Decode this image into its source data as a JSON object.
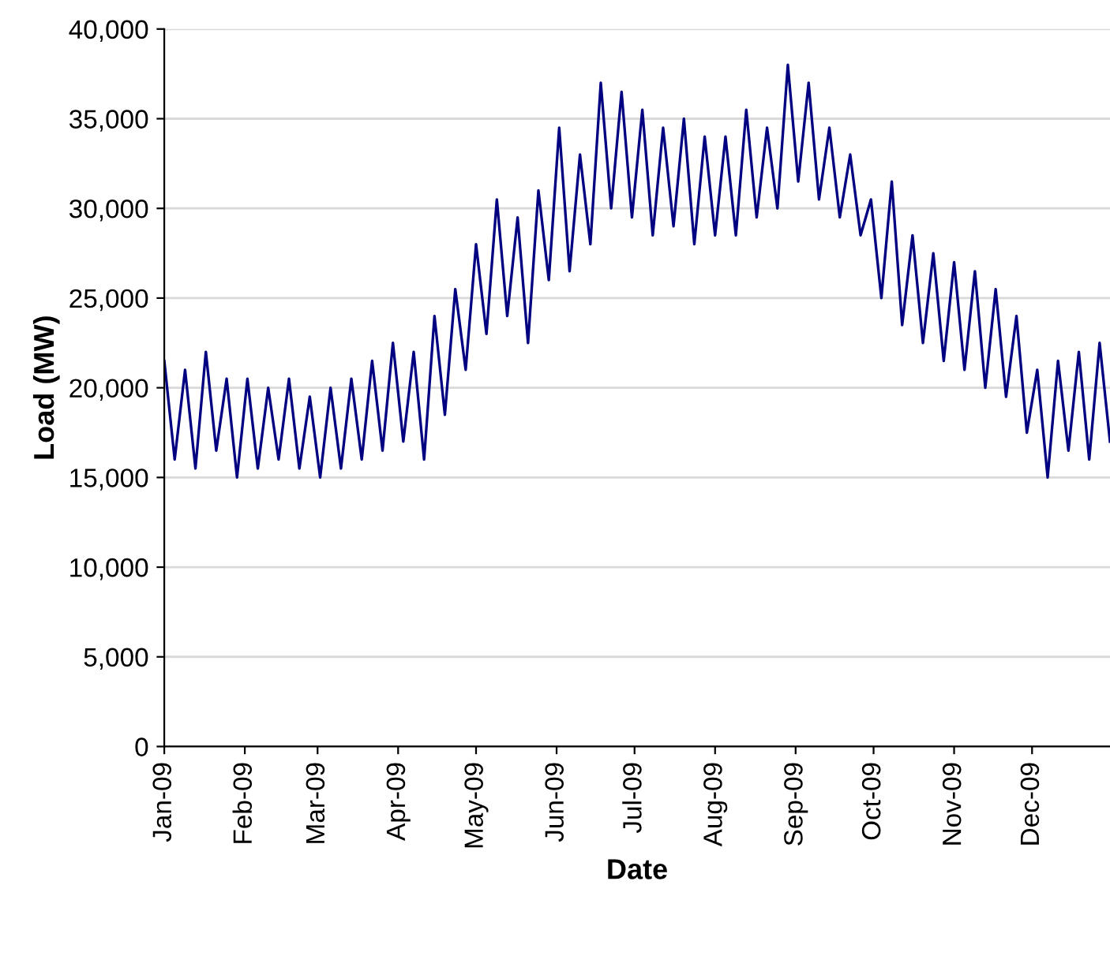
{
  "chart_data": {
    "type": "line",
    "xlabel": "Date",
    "ylabel": "Load (MW)",
    "grid": "y",
    "legend": false,
    "marker": "none",
    "line_style": "solid",
    "ylim": [
      0,
      40000
    ],
    "yticks": [
      {
        "value": 0,
        "label": "0"
      },
      {
        "value": 5000,
        "label": "5,000"
      },
      {
        "value": 10000,
        "label": "10,000"
      },
      {
        "value": 15000,
        "label": "15,000"
      },
      {
        "value": 20000,
        "label": "20,000"
      },
      {
        "value": 25000,
        "label": "25,000"
      },
      {
        "value": 30000,
        "label": "30,000"
      },
      {
        "value": 35000,
        "label": "35,000"
      },
      {
        "value": 40000,
        "label": "40,000"
      }
    ],
    "xlim": [
      "2009-01-01",
      "2009-12-31"
    ],
    "xticks": [
      {
        "value": "2009-01-01",
        "label": "Jan-09"
      },
      {
        "value": "2009-02-01",
        "label": "Feb-09"
      },
      {
        "value": "2009-03-01",
        "label": "Mar-09"
      },
      {
        "value": "2009-04-01",
        "label": "Apr-09"
      },
      {
        "value": "2009-05-01",
        "label": "May-09"
      },
      {
        "value": "2009-06-01",
        "label": "Jun-09"
      },
      {
        "value": "2009-07-01",
        "label": "Jul-09"
      },
      {
        "value": "2009-08-01",
        "label": "Aug-09"
      },
      {
        "value": "2009-09-01",
        "label": "Sep-09"
      },
      {
        "value": "2009-10-01",
        "label": "Oct-09"
      },
      {
        "value": "2009-11-01",
        "label": "Nov-09"
      },
      {
        "value": "2009-12-01",
        "label": "Dec-09"
      }
    ],
    "x": [
      "2009-01-01",
      "2009-01-05",
      "2009-01-09",
      "2009-01-13",
      "2009-01-17",
      "2009-01-21",
      "2009-01-25",
      "2009-01-29",
      "2009-02-02",
      "2009-02-06",
      "2009-02-10",
      "2009-02-14",
      "2009-02-18",
      "2009-02-22",
      "2009-02-26",
      "2009-03-02",
      "2009-03-06",
      "2009-03-10",
      "2009-03-14",
      "2009-03-18",
      "2009-03-22",
      "2009-03-26",
      "2009-03-30",
      "2009-04-03",
      "2009-04-07",
      "2009-04-11",
      "2009-04-15",
      "2009-04-19",
      "2009-04-23",
      "2009-04-27",
      "2009-05-01",
      "2009-05-05",
      "2009-05-09",
      "2009-05-13",
      "2009-05-17",
      "2009-05-21",
      "2009-05-25",
      "2009-05-29",
      "2009-06-02",
      "2009-06-06",
      "2009-06-10",
      "2009-06-14",
      "2009-06-18",
      "2009-06-22",
      "2009-06-26",
      "2009-06-30",
      "2009-07-04",
      "2009-07-08",
      "2009-07-12",
      "2009-07-16",
      "2009-07-20",
      "2009-07-24",
      "2009-07-28",
      "2009-08-01",
      "2009-08-05",
      "2009-08-09",
      "2009-08-13",
      "2009-08-17",
      "2009-08-21",
      "2009-08-25",
      "2009-08-29",
      "2009-09-02",
      "2009-09-06",
      "2009-09-10",
      "2009-09-14",
      "2009-09-18",
      "2009-09-22",
      "2009-09-26",
      "2009-09-30",
      "2009-10-04",
      "2009-10-08",
      "2009-10-12",
      "2009-10-16",
      "2009-10-20",
      "2009-10-24",
      "2009-10-28",
      "2009-11-01",
      "2009-11-05",
      "2009-11-09",
      "2009-11-13",
      "2009-11-17",
      "2009-11-21",
      "2009-11-25",
      "2009-11-29",
      "2009-12-03",
      "2009-12-07",
      "2009-12-11",
      "2009-12-15",
      "2009-12-19",
      "2009-12-23",
      "2009-12-27",
      "2009-12-31"
    ],
    "series": [
      {
        "color": "#000080",
        "values": [
          21500,
          16000,
          21000,
          15500,
          22000,
          16500,
          20500,
          15000,
          20500,
          15500,
          20000,
          16000,
          20500,
          15500,
          19500,
          15000,
          20000,
          15500,
          20500,
          16000,
          21500,
          16500,
          22500,
          17000,
          22000,
          16000,
          24000,
          18500,
          25500,
          21000,
          28000,
          23000,
          30500,
          24000,
          29500,
          22500,
          31000,
          26000,
          34500,
          26500,
          33000,
          28000,
          37000,
          30000,
          36500,
          29500,
          35500,
          28500,
          34500,
          29000,
          35000,
          28000,
          34000,
          28500,
          34000,
          28500,
          35500,
          29500,
          34500,
          30000,
          38000,
          31500,
          37000,
          30500,
          34500,
          29500,
          33000,
          28500,
          30500,
          25000,
          31500,
          23500,
          28500,
          22500,
          27500,
          21500,
          27000,
          21000,
          26500,
          20000,
          25500,
          19500,
          24000,
          17500,
          21000,
          15000,
          21500,
          16500,
          22000,
          16000,
          22500,
          17000
        ]
      }
    ]
  }
}
